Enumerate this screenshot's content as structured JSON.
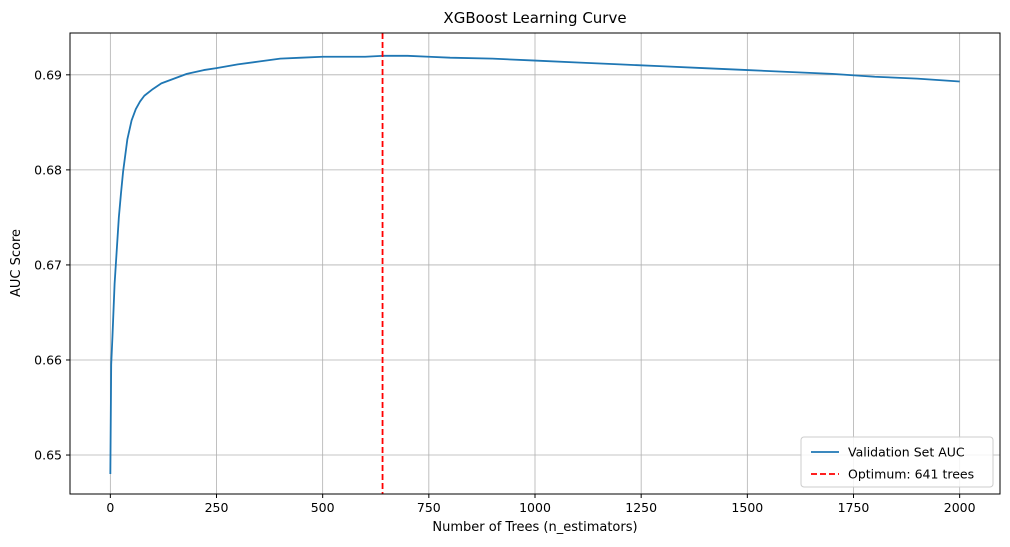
{
  "chart_data": {
    "type": "line",
    "title": "XGBoost Learning Curve",
    "xlabel": "Number of Trees (n_estimators)",
    "ylabel": "AUC Score",
    "xlim": [
      -95,
      2095
    ],
    "ylim": [
      0.6459,
      0.6944
    ],
    "x_ticks": [
      0,
      250,
      500,
      750,
      1000,
      1250,
      1500,
      1750,
      2000
    ],
    "x_tick_labels": [
      "0",
      "250",
      "500",
      "750",
      "1000",
      "1250",
      "1500",
      "1750",
      "2000"
    ],
    "y_ticks": [
      0.65,
      0.66,
      0.67,
      0.68,
      0.69
    ],
    "y_tick_labels": [
      "0.65",
      "0.66",
      "0.67",
      "0.68",
      "0.69"
    ],
    "grid": true,
    "legend_position": "bottom-right",
    "series": [
      {
        "name": "Validation Set AUC",
        "color": "#1f77b4",
        "style": "solid",
        "x": [
          0,
          2,
          5,
          10,
          15,
          20,
          25,
          30,
          40,
          50,
          60,
          70,
          80,
          100,
          120,
          150,
          180,
          220,
          250,
          300,
          350,
          400,
          450,
          500,
          550,
          600,
          641,
          700,
          750,
          800,
          900,
          1000,
          1100,
          1200,
          1300,
          1400,
          1500,
          1600,
          1700,
          1800,
          1900,
          2000
        ],
        "y": [
          0.648,
          0.6595,
          0.6625,
          0.668,
          0.6715,
          0.675,
          0.6775,
          0.6798,
          0.6832,
          0.6852,
          0.6864,
          0.6872,
          0.6878,
          0.6885,
          0.6891,
          0.6896,
          0.6901,
          0.6905,
          0.6907,
          0.6911,
          0.6914,
          0.6917,
          0.6918,
          0.6919,
          0.6919,
          0.6919,
          0.692,
          0.692,
          0.6919,
          0.6918,
          0.6917,
          0.6915,
          0.6913,
          0.6911,
          0.6909,
          0.6907,
          0.6905,
          0.6903,
          0.6901,
          0.6898,
          0.6896,
          0.6893
        ]
      },
      {
        "name": "Optimum: 641 trees",
        "color": "#ff0000",
        "style": "dashed",
        "vline_x": 641
      }
    ]
  }
}
